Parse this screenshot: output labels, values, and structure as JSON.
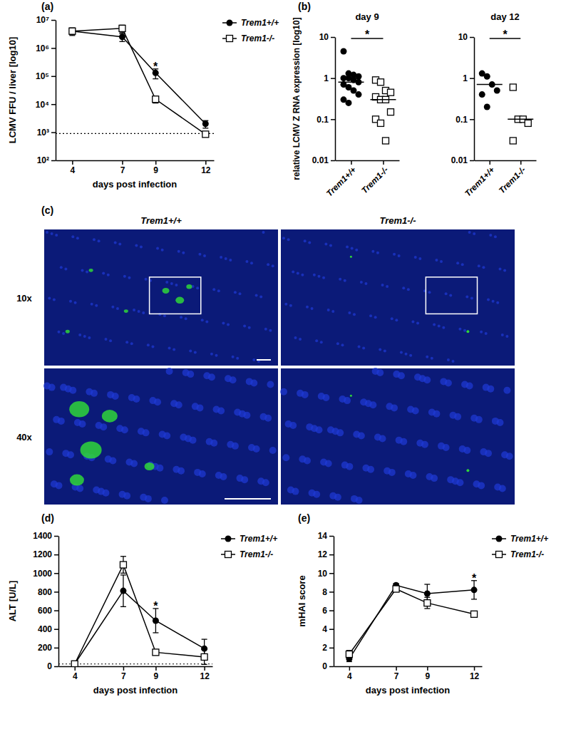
{
  "chart_data": [
    {
      "panel": "(a)",
      "type": "line",
      "x_label": "days post infection",
      "y_label": "LCMV FFU / liver [log10]",
      "log": "y",
      "x": [
        4,
        7,
        9,
        12
      ],
      "xlim": [
        3,
        12.5
      ],
      "xticks": [
        4,
        7,
        9,
        12
      ],
      "ylim": [
        100,
        10000000
      ],
      "yticks": [
        {
          "value": 100,
          "label": "10²"
        },
        {
          "value": 1000,
          "label": "10³"
        },
        {
          "value": 10000,
          "label": "10⁴"
        },
        {
          "value": 100000,
          "label": "10⁵"
        },
        {
          "value": 1000000,
          "label": "10⁶"
        },
        {
          "value": 10000000,
          "label": "10⁷"
        }
      ],
      "reference_line": 900,
      "legend": "upper right",
      "series": [
        {
          "name": "Trem1+/+",
          "color": "#000000",
          "marker": "circle",
          "line_style": "solid",
          "values": [
            4000000,
            2500000,
            130000,
            2000
          ],
          "errors": [
            1000000,
            800000,
            50000,
            600
          ]
        },
        {
          "name": "Trem1-/-",
          "color": "#000000",
          "marker": "square",
          "line_style": "solid",
          "values": [
            4000000,
            5000000,
            15000,
            850
          ],
          "errors": [
            1200000,
            1500000,
            4000,
            100
          ]
        }
      ],
      "annotations": [
        {
          "text": "*",
          "x": 9
        }
      ]
    },
    {
      "panel": "(b)",
      "type": "dot",
      "title": "day 9",
      "y_label": "relative LCMV Z RNA expression [log10]",
      "log": "y",
      "ylim": [
        0.01,
        10
      ],
      "yticks": [
        0.01,
        0.1,
        1,
        10
      ],
      "categories": [
        "Trem1+/+",
        "Trem1-/-"
      ],
      "groups": [
        {
          "marker": "circle",
          "color": "#000000",
          "median": 0.8,
          "values": [
            4.5,
            1.3,
            1.2,
            1.1,
            1.0,
            1.0,
            0.9,
            0.8,
            0.7,
            0.6,
            0.5,
            0.4,
            0.3,
            0.25
          ]
        },
        {
          "marker": "square",
          "color": "#000000",
          "median": 0.3,
          "values": [
            0.9,
            0.8,
            0.5,
            0.45,
            0.35,
            0.3,
            0.3,
            0.15,
            0.1,
            0.08,
            0.03
          ]
        }
      ],
      "annotations": [
        {
          "text": "*"
        }
      ]
    },
    {
      "type": "dot",
      "title": "day 12",
      "log": "y",
      "ylim": [
        0.01,
        10
      ],
      "yticks": [
        0.01,
        0.1,
        1,
        10
      ],
      "categories": [
        "Trem1+/+",
        "Trem1-/-"
      ],
      "groups": [
        {
          "marker": "circle",
          "color": "#000000",
          "median": 0.7,
          "values": [
            1.3,
            1.1,
            0.7,
            0.5,
            0.4,
            0.2
          ]
        },
        {
          "marker": "square",
          "color": "#000000",
          "median": 0.1,
          "values": [
            0.6,
            0.1,
            0.1,
            0.08,
            0.03
          ]
        }
      ],
      "annotations": [
        {
          "text": "*"
        }
      ]
    },
    {
      "panel": "(d)",
      "type": "line",
      "x_label": "days post infection",
      "y_label": "ALT [U/L]",
      "x": [
        4,
        7,
        9,
        12
      ],
      "xlim": [
        3,
        12.5
      ],
      "xticks": [
        4,
        7,
        9,
        12
      ],
      "ylim": [
        0,
        1400
      ],
      "yticks": [
        0,
        200,
        400,
        600,
        800,
        1000,
        1200,
        1400
      ],
      "reference_line": 25,
      "legend": "upper right",
      "series": [
        {
          "name": "Trem1+/+",
          "color": "#000000",
          "marker": "circle",
          "line_style": "solid",
          "values": [
            25,
            810,
            490,
            190
          ],
          "errors": [
            10,
            170,
            130,
            100
          ]
        },
        {
          "name": "Trem1-/-",
          "color": "#000000",
          "marker": "square",
          "line_style": "solid",
          "values": [
            25,
            1090,
            150,
            100
          ],
          "errors": [
            10,
            90,
            30,
            80
          ]
        }
      ],
      "annotations": [
        {
          "text": "*",
          "x": 9
        }
      ]
    },
    {
      "panel": "(e)",
      "type": "line",
      "x_label": "days post infection",
      "y_label": "mHAI score",
      "x": [
        4,
        7,
        9,
        12
      ],
      "xlim": [
        3,
        12.5
      ],
      "xticks": [
        4,
        7,
        9,
        12
      ],
      "ylim": [
        0,
        14
      ],
      "yticks": [
        0,
        2,
        4,
        6,
        8,
        10,
        12,
        14
      ],
      "legend": "upper right",
      "series": [
        {
          "name": "Trem1+/+",
          "color": "#000000",
          "marker": "circle",
          "line_style": "solid",
          "values": [
            0.8,
            8.7,
            7.8,
            8.2
          ],
          "errors": [
            0.3,
            0.2,
            1.0,
            1.0
          ]
        },
        {
          "name": "Trem1-/-",
          "color": "#000000",
          "marker": "square",
          "line_style": "solid",
          "values": [
            1.3,
            8.3,
            6.8,
            5.6
          ],
          "errors": [
            0.4,
            0.3,
            0.6,
            0.3
          ]
        }
      ],
      "annotations": [
        {
          "text": "*",
          "x": 12
        }
      ]
    }
  ],
  "micrograph": {
    "panel": "(c)",
    "columns": [
      "Trem1+/+",
      "Trem1-/-"
    ],
    "rows": [
      "10x",
      "40x"
    ]
  }
}
